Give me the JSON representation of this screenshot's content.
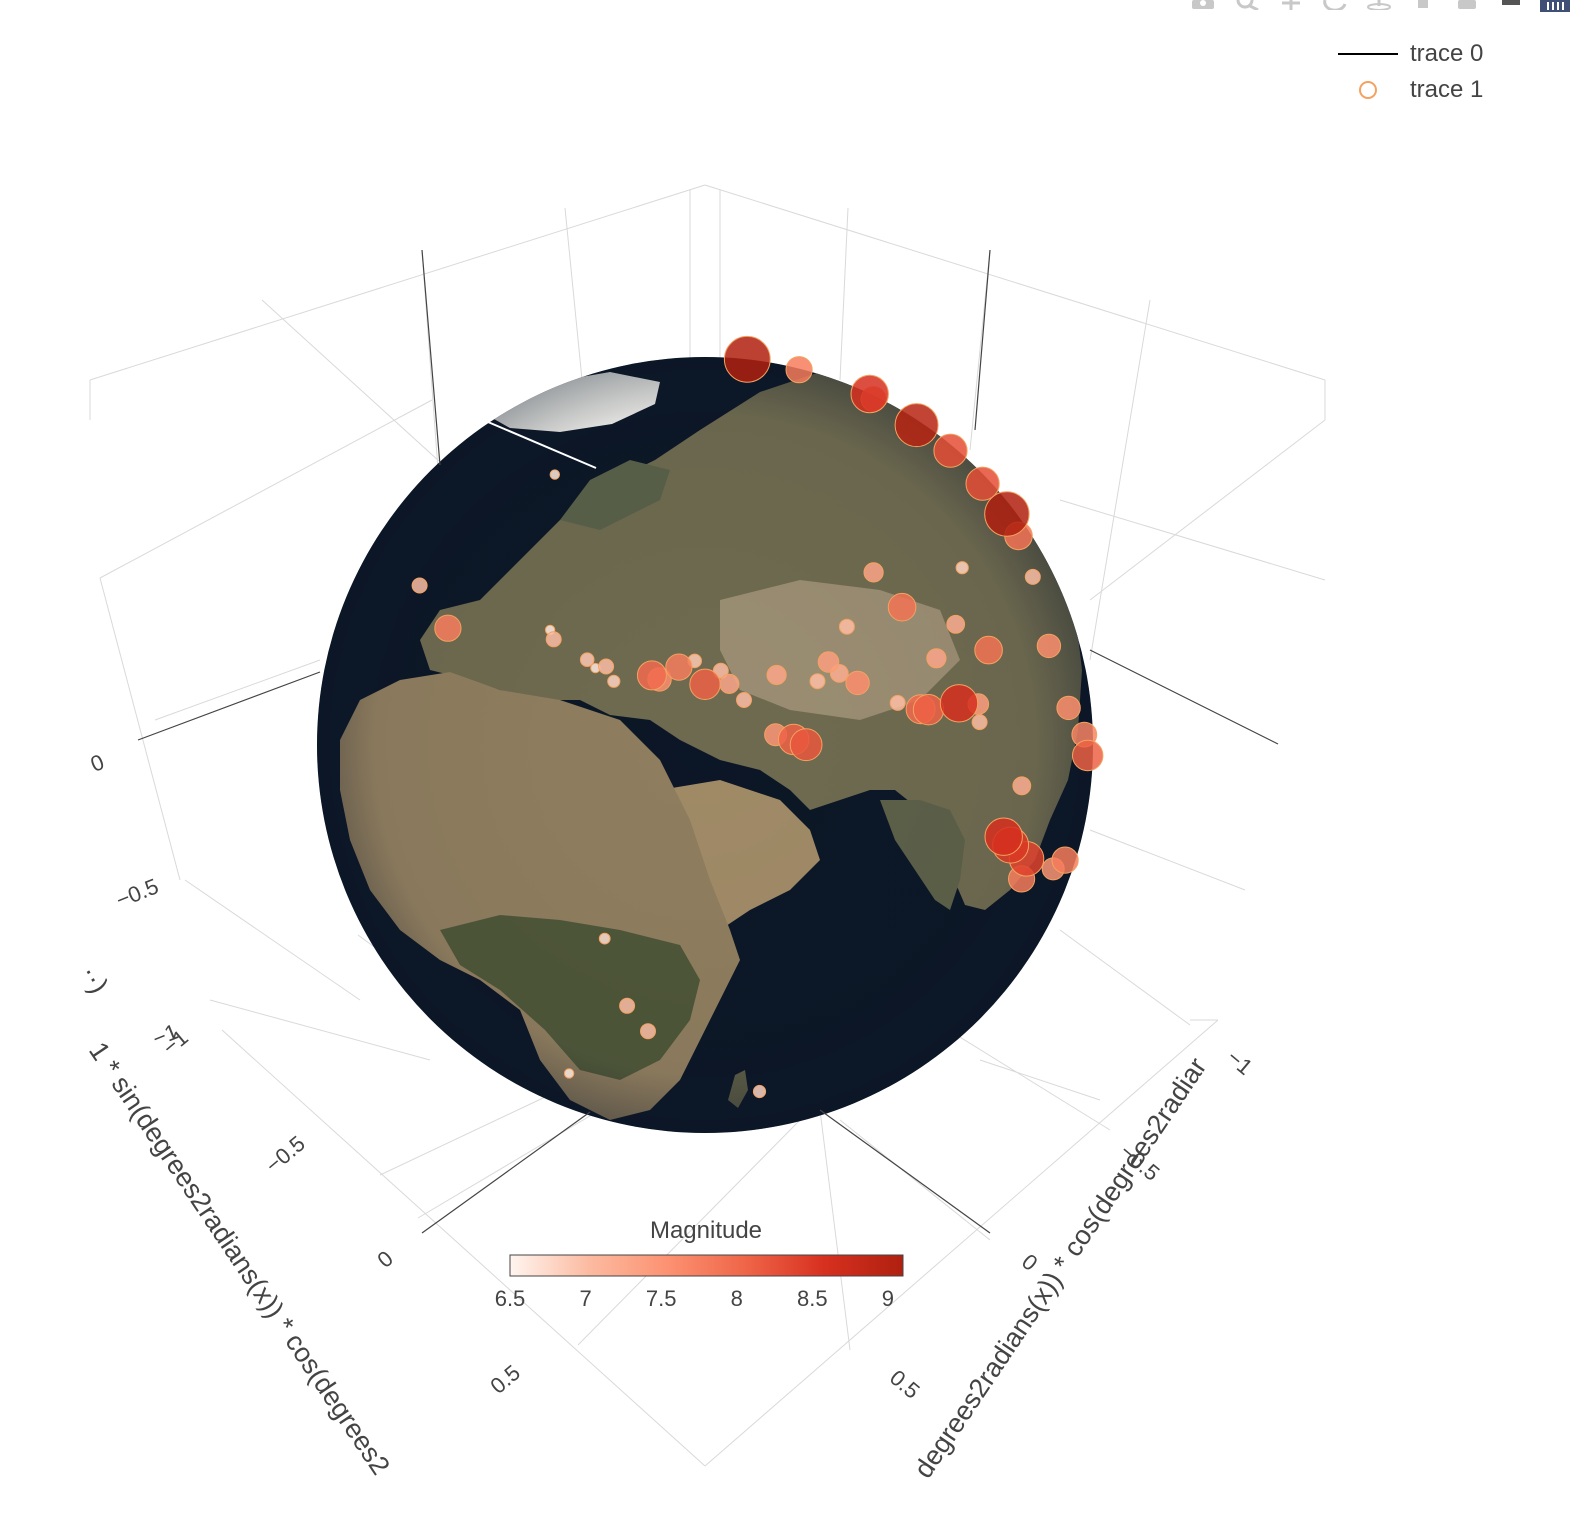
{
  "modebar": {
    "buttons": [
      {
        "icon": "camera-icon"
      },
      {
        "icon": "zoom-icon"
      },
      {
        "icon": "pan-icon"
      },
      {
        "icon": "orbit-rotation-icon"
      },
      {
        "icon": "turntable-rotation-icon"
      },
      {
        "icon": "reset-camera-icon"
      },
      {
        "icon": "hover-icon"
      },
      {
        "icon": "spike-lines-icon"
      },
      {
        "icon": "plotly-logo-icon"
      }
    ]
  },
  "legend": {
    "items": [
      {
        "label": "trace 0",
        "symbol": "line",
        "color": "#000000"
      },
      {
        "label": "trace 1",
        "symbol": "open-circle",
        "color": "#f4a261"
      }
    ]
  },
  "chart_data": {
    "type": "scatter3d",
    "surface": "globe (earth texture)",
    "legend_placement": "top-right",
    "grid": true,
    "axes": {
      "x": {
        "title": "1 * sin(degrees2radians(x)) * cos(degrees2",
        "ticks": [
          "−1",
          "−0.5",
          "0",
          "0.5"
        ]
      },
      "y": {
        "title": "degrees2radians(x)) * cos(degrees2radiar",
        "ticks": [
          "−1",
          "−0.5",
          "0",
          "0.5"
        ]
      },
      "z": {
        "title": "··)",
        "ticks": [
          "−1",
          "−0.5",
          "0"
        ]
      },
      "range": [
        -1,
        1
      ]
    },
    "colorbar": {
      "title": "Magnitude",
      "range": [
        6.5,
        9.1
      ],
      "ticks": [
        "6.5",
        "7",
        "7.5",
        "8",
        "8.5",
        "9"
      ],
      "colors": [
        "#fff5f0",
        "#fcbba1",
        "#fc9272",
        "#ef6548",
        "#d7301f",
        "#b0200f"
      ]
    },
    "series": [
      {
        "name": "trace 0",
        "kind": "line"
      },
      {
        "name": "trace 1",
        "kind": "markers",
        "points": [
          {
            "lon": 12.5,
            "lat": 42.0,
            "mag": 6.6
          },
          {
            "lon": 26.0,
            "lat": 38.5,
            "mag": 7.0
          },
          {
            "lon": 28.0,
            "lat": 36.5,
            "mag": 6.8
          },
          {
            "lon": 24.0,
            "lat": 38.0,
            "mag": 6.6
          },
          {
            "lon": 35.0,
            "lat": 38.0,
            "mag": 8.0
          },
          {
            "lon": 36.5,
            "lat": 37.5,
            "mag": 7.6
          },
          {
            "lon": 45.0,
            "lat": 37.0,
            "mag": 8.1
          },
          {
            "lon": 49.5,
            "lat": 37.0,
            "mag": 7.3
          },
          {
            "lon": 52.0,
            "lat": 34.5,
            "mag": 7.0
          },
          {
            "lon": 57.0,
            "lat": 29.0,
            "mag": 7.5
          },
          {
            "lon": 60.0,
            "lat": 28.0,
            "mag": 8.1
          },
          {
            "lon": 62.0,
            "lat": 27.0,
            "mag": 8.2
          },
          {
            "lon": 66.0,
            "lat": 36.0,
            "mag": 7.0
          },
          {
            "lon": 70.5,
            "lat": 36.5,
            "mag": 7.2
          },
          {
            "lon": 73.5,
            "lat": 34.5,
            "mag": 7.6
          },
          {
            "lon": 84.0,
            "lat": 28.0,
            "mag": 8.0
          },
          {
            "lon": 85.5,
            "lat": 27.5,
            "mag": 8.1
          },
          {
            "lon": 91.0,
            "lat": 34.0,
            "mag": 7.3
          },
          {
            "lon": 99.0,
            "lat": 37.0,
            "mag": 7.2
          },
          {
            "lon": 103.5,
            "lat": 31.0,
            "mag": 7.9
          },
          {
            "lon": 96.0,
            "lat": 25.0,
            "mag": 7.4
          },
          {
            "lon": 95.0,
            "lat": 22.5,
            "mag": 7.0
          },
          {
            "lon": 101.0,
            "lat": 10.0,
            "mag": 7.2
          },
          {
            "lon": 95.5,
            "lat": 4.0,
            "mag": 8.6
          },
          {
            "lon": 97.0,
            "lat": 2.0,
            "mag": 8.5
          },
          {
            "lon": 101.0,
            "lat": -2.0,
            "mag": 8.4
          },
          {
            "lon": 100.0,
            "lat": -5.0,
            "mag": 7.8
          },
          {
            "lon": 110.0,
            "lat": -8.0,
            "mag": 7.5
          },
          {
            "lon": 120.0,
            "lat": 14.0,
            "mag": 7.6
          },
          {
            "lon": 125.0,
            "lat": 7.0,
            "mag": 7.7
          },
          {
            "lon": 130.0,
            "lat": 32.0,
            "mag": 7.0
          },
          {
            "lon": 138.0,
            "lat": 36.0,
            "mag": 7.9
          },
          {
            "lon": 142.5,
            "lat": 38.3,
            "mag": 9.1
          },
          {
            "lon": 147.0,
            "lat": 43.0,
            "mag": 8.3
          },
          {
            "lon": 154.0,
            "lat": 48.0,
            "mag": 8.3
          },
          {
            "lon": 160.0,
            "lat": 53.0,
            "mag": 9.0
          },
          {
            "lon": 170.0,
            "lat": 58.0,
            "mag": 7.7
          },
          {
            "lon": -178.0,
            "lat": 51.5,
            "mag": 8.6
          },
          {
            "lon": -160.0,
            "lat": 55.0,
            "mag": 7.8
          },
          {
            "lon": -148.0,
            "lat": 61.0,
            "mag": 9.2
          },
          {
            "lon": 110.0,
            "lat": 43.0,
            "mag": 6.8
          },
          {
            "lon": 87.0,
            "lat": 49.5,
            "mag": 7.3
          },
          {
            "lon": 75.0,
            "lat": 43.0,
            "mag": 7.0
          },
          {
            "lon": 30.0,
            "lat": -3.0,
            "mag": 6.7
          },
          {
            "lon": 33.0,
            "lat": -15.0,
            "mag": 7.0
          },
          {
            "lon": 20.0,
            "lat": -34.0,
            "mag": 6.6
          },
          {
            "lon": 36.0,
            "lat": -20.0,
            "mag": 7.0
          },
          {
            "lon": -10.0,
            "lat": 36.0,
            "mag": 7.8
          },
          {
            "lon": -24.0,
            "lat": 38.0,
            "mag": 7.0
          },
          {
            "lon": -17.0,
            "lat": 64.0,
            "mag": 6.6
          },
          {
            "lon": 55.0,
            "lat": -36.0,
            "mag": 6.8
          },
          {
            "lon": 14.0,
            "lat": 40.8,
            "mag": 7.0
          },
          {
            "lon": 22.0,
            "lat": 39.0,
            "mag": 6.9
          },
          {
            "lon": 40.0,
            "lat": 39.5,
            "mag": 7.8
          },
          {
            "lon": 43.0,
            "lat": 40.5,
            "mag": 6.9
          },
          {
            "lon": 48.0,
            "lat": 39.0,
            "mag": 7.0
          },
          {
            "lon": 58.5,
            "lat": 37.8,
            "mag": 7.3
          },
          {
            "lon": 69.0,
            "lat": 38.5,
            "mag": 7.4
          },
          {
            "lon": 80.0,
            "lat": 30.0,
            "mag": 7.0
          },
          {
            "lon": 92.0,
            "lat": 26.5,
            "mag": 8.6
          },
          {
            "lon": 89.0,
            "lat": 43.0,
            "mag": 7.9
          },
          {
            "lon": 121.0,
            "lat": 24.0,
            "mag": 7.6
          },
          {
            "lon": 126.0,
            "lat": 3.0,
            "mag": 8.1
          },
          {
            "lon": 115.0,
            "lat": -9.0,
            "mag": 7.8
          }
        ]
      }
    ]
  }
}
